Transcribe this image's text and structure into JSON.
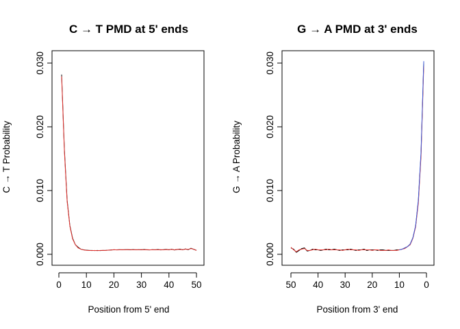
{
  "chart_data": [
    {
      "type": "line",
      "title": "C → T PMD at 5' ends",
      "xlabel": "Position from 5' end",
      "ylabel": "C → T Probability",
      "xlim": [
        0,
        50
      ],
      "ylim": [
        0,
        0.03
      ],
      "x_reversed": false,
      "xticks": [
        0,
        10,
        20,
        30,
        40,
        50
      ],
      "xtick_labels": [
        "0",
        "10",
        "20",
        "30",
        "40",
        "50"
      ],
      "yticks": [
        0,
        0.01,
        0.02,
        0.03
      ],
      "ytick_labels": [
        "0.000",
        "0.010",
        "0.020",
        "0.030"
      ],
      "grid": false,
      "series": [
        {
          "color": "#000000",
          "x": [
            1,
            2,
            3,
            4,
            5,
            6,
            7,
            8,
            9,
            10,
            11,
            12,
            13,
            14,
            15,
            16,
            17,
            18,
            19,
            20,
            21,
            22,
            23,
            24,
            25,
            26,
            27,
            28,
            29,
            30,
            31,
            32,
            33,
            34,
            35,
            36,
            37,
            38,
            39,
            40,
            41,
            42,
            43,
            44,
            45,
            46,
            47,
            48,
            49,
            50
          ],
          "values": [
            0.0282,
            0.0165,
            0.0085,
            0.0045,
            0.0025,
            0.0015,
            0.0011,
            0.0008,
            0.0007,
            0.00065,
            0.0006,
            0.0006,
            0.00058,
            0.0006,
            0.00058,
            0.0006,
            0.00062,
            0.00065,
            0.00068,
            0.0007,
            0.0007,
            0.00072,
            0.0007,
            0.00073,
            0.00072,
            0.0007,
            0.00074,
            0.0007,
            0.00072,
            0.0007,
            0.00075,
            0.0007,
            0.00068,
            0.00072,
            0.0007,
            0.00075,
            0.00068,
            0.00072,
            0.00078,
            0.0007,
            0.0008,
            0.00068,
            0.00075,
            0.00082,
            0.0007,
            0.00085,
            0.00072,
            0.00095,
            0.00078,
            0.00062
          ]
        },
        {
          "color": "#e8332f",
          "x": [
            1,
            2,
            3,
            4,
            5,
            6,
            7,
            8,
            9,
            10,
            11,
            12,
            13,
            14,
            15,
            16,
            17,
            18,
            19,
            20,
            21,
            22,
            23,
            24,
            25,
            26,
            27,
            28,
            29,
            30,
            31,
            32,
            33,
            34,
            35,
            36,
            37,
            38,
            39,
            40,
            41,
            42,
            43,
            44,
            45,
            46,
            47,
            48,
            49,
            50
          ],
          "values": [
            0.0279,
            0.0162,
            0.0083,
            0.0044,
            0.0024,
            0.0015,
            0.001,
            0.0008,
            0.00068,
            0.00062,
            0.0006,
            0.00058,
            0.0006,
            0.00057,
            0.0006,
            0.00062,
            0.0006,
            0.00066,
            0.00066,
            0.00072,
            0.00068,
            0.0007,
            0.00072,
            0.0007,
            0.00074,
            0.00072,
            0.0007,
            0.00073,
            0.0007,
            0.00074,
            0.0007,
            0.00072,
            0.0007,
            0.0007,
            0.00073,
            0.0007,
            0.00072,
            0.0007,
            0.00074,
            0.00072,
            0.00076,
            0.0007,
            0.00078,
            0.00075,
            0.00072,
            0.0008,
            0.00076,
            0.0009,
            0.0008,
            0.0006
          ]
        }
      ]
    },
    {
      "type": "line",
      "title": "G → A PMD at 3' ends",
      "xlabel": "Position from 3' end",
      "ylabel": "G → A Probability",
      "xlim": [
        0,
        50
      ],
      "ylim": [
        0,
        0.03
      ],
      "x_reversed": true,
      "xticks": [
        50,
        40,
        30,
        20,
        10,
        0
      ],
      "xtick_labels": [
        "50",
        "40",
        "30",
        "20",
        "10",
        "0"
      ],
      "yticks": [
        0,
        0.01,
        0.02,
        0.03
      ],
      "ytick_labels": [
        "0.000",
        "0.010",
        "0.020",
        "0.030"
      ],
      "grid": false,
      "series": [
        {
          "color": "#000000",
          "x": [
            50,
            49,
            48,
            47,
            46,
            45,
            44,
            43,
            42,
            41,
            40,
            39,
            38,
            37,
            36,
            35,
            34,
            33,
            32,
            31,
            30,
            29,
            28,
            27,
            26,
            25,
            24,
            23,
            22,
            21,
            20,
            19,
            18,
            17,
            16,
            15,
            14,
            13,
            12,
            11,
            10,
            9,
            8,
            7,
            6,
            5,
            4,
            3,
            2,
            1
          ],
          "values": [
            0.001,
            0.0008,
            0.0003,
            0.0006,
            0.0009,
            0.001,
            0.0005,
            0.0006,
            0.0008,
            0.0007,
            0.0007,
            0.0006,
            0.0007,
            0.0008,
            0.0007,
            0.0007,
            0.0008,
            0.0007,
            0.0006,
            0.0007,
            0.0007,
            0.0007,
            0.0008,
            0.0007,
            0.0006,
            0.0007,
            0.0007,
            0.0008,
            0.0006,
            0.0007,
            0.0007,
            0.0007,
            0.0006,
            0.0007,
            0.0007,
            0.0006,
            0.0006,
            0.0006,
            0.0006,
            0.0007,
            0.0007,
            0.0008,
            0.001,
            0.0012,
            0.0016,
            0.0026,
            0.0044,
            0.0083,
            0.0158,
            0.0301
          ]
        },
        {
          "color": "#e8332f",
          "x": [
            50,
            49,
            48,
            47,
            46,
            45,
            44,
            43,
            42,
            41,
            40,
            39,
            38,
            37,
            36,
            35,
            34,
            33,
            32,
            31,
            30,
            29,
            28,
            27,
            26,
            25,
            24,
            23,
            22,
            21,
            20,
            19,
            18,
            17,
            16,
            15,
            14,
            13,
            12,
            11,
            10,
            9,
            8,
            7,
            6,
            5,
            4,
            3,
            2,
            1
          ],
          "values": [
            0.0011,
            0.0007,
            0.0004,
            0.0007,
            0.0008,
            0.0009,
            0.0006,
            0.0006,
            0.0007,
            0.0008,
            0.0007,
            0.0007,
            0.0007,
            0.0007,
            0.0008,
            0.0007,
            0.0007,
            0.0007,
            0.0007,
            0.0006,
            0.0007,
            0.0008,
            0.0007,
            0.0007,
            0.0007,
            0.0006,
            0.0007,
            0.0007,
            0.0007,
            0.0007,
            0.0006,
            0.0007,
            0.0007,
            0.0006,
            0.0006,
            0.0006,
            0.0007,
            0.0006,
            0.0006,
            0.0006,
            0.0007,
            0.0008,
            0.0009,
            0.0012,
            0.0015,
            0.0025,
            0.0043,
            0.008,
            0.0154,
            0.0295
          ]
        },
        {
          "color": "#3b5bdb",
          "x": [
            10,
            9,
            8,
            7,
            6,
            5,
            4,
            3,
            2,
            1
          ],
          "values": [
            0.0007,
            0.0008,
            0.001,
            0.0012,
            0.0016,
            0.0026,
            0.0045,
            0.0085,
            0.0161,
            0.0303
          ]
        }
      ]
    }
  ]
}
